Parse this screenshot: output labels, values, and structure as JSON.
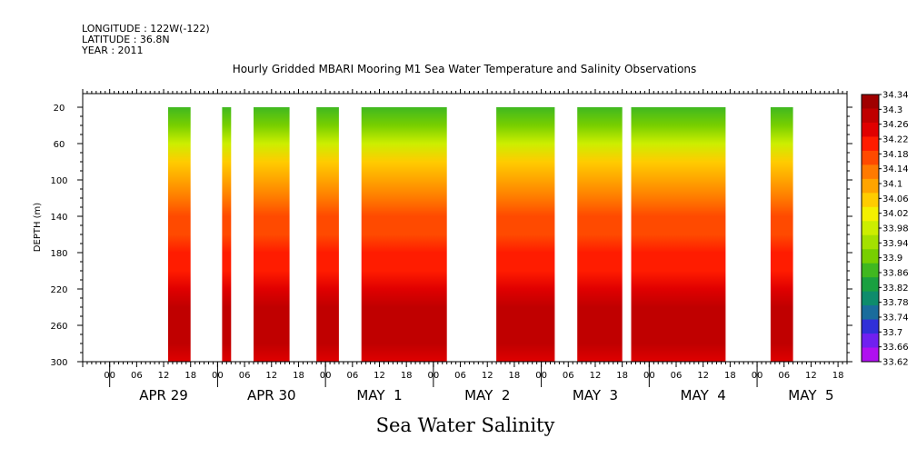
{
  "header": {
    "longitude": "LONGITUDE : 122W(-122)",
    "latitude": "LATITUDE : 36.8N",
    "year": "YEAR : 2011"
  },
  "chart_data": {
    "type": "heatmap",
    "title": "Hourly Gridded MBARI Mooring M1 Sea Water Temperature and Salinity Observations",
    "xlabel": "Sea Water Salinity",
    "ylabel": "DEPTH (m)",
    "ylim": [
      300,
      5
    ],
    "y_ticks": [
      20,
      60,
      100,
      140,
      180,
      220,
      260,
      300
    ],
    "x_range_hours": [
      -6,
      164
    ],
    "hour_tick_labels": [
      "00",
      "06",
      "12",
      "18",
      "00",
      "06",
      "12",
      "18",
      "00",
      "06",
      "12",
      "18",
      "00",
      "06",
      "12",
      "18",
      "00",
      "06",
      "12",
      "18",
      "00",
      "06",
      "12",
      "18",
      "00",
      "06",
      "12",
      "18"
    ],
    "day_labels": [
      {
        "label": "APR 29",
        "hour": 12
      },
      {
        "label": "APR 30",
        "hour": 36
      },
      {
        "label": "MAY  1",
        "hour": 60
      },
      {
        "label": "MAY  2",
        "hour": 84
      },
      {
        "label": "MAY  3",
        "hour": 108
      },
      {
        "label": "MAY  4",
        "hour": 132
      },
      {
        "label": "MAY  5",
        "hour": 156
      }
    ],
    "data_segments_hours": [
      [
        13,
        18
      ],
      [
        25,
        27
      ],
      [
        32,
        40
      ],
      [
        46,
        51
      ],
      [
        56,
        75
      ],
      [
        86,
        99
      ],
      [
        104,
        114
      ],
      [
        116,
        137
      ],
      [
        147,
        152
      ]
    ],
    "depth_profile": [
      {
        "depth": 20,
        "value": 33.83
      },
      {
        "depth": 40,
        "value": 33.9
      },
      {
        "depth": 60,
        "value": 33.98
      },
      {
        "depth": 80,
        "value": 34.05
      },
      {
        "depth": 100,
        "value": 34.09
      },
      {
        "depth": 120,
        "value": 34.12
      },
      {
        "depth": 140,
        "value": 34.15
      },
      {
        "depth": 160,
        "value": 34.18
      },
      {
        "depth": 180,
        "value": 34.19
      },
      {
        "depth": 200,
        "value": 34.21
      },
      {
        "depth": 220,
        "value": 34.24
      },
      {
        "depth": 240,
        "value": 34.28
      },
      {
        "depth": 260,
        "value": 34.3
      },
      {
        "depth": 280,
        "value": 34.28
      },
      {
        "depth": 300,
        "value": 34.26
      }
    ],
    "colorbar": {
      "levels": [
        34.34,
        34.3,
        34.26,
        34.22,
        34.18,
        34.14,
        34.1,
        34.06,
        34.02,
        33.98,
        33.94,
        33.9,
        33.86,
        33.82,
        33.78,
        33.74,
        33.7,
        33.66,
        33.62
      ],
      "colors": [
        "#a00000",
        "#c00000",
        "#e00000",
        "#ff1c00",
        "#ff4a00",
        "#ff7a00",
        "#ffa400",
        "#ffcc00",
        "#f4f000",
        "#ccee00",
        "#a4e000",
        "#78cf00",
        "#40b820",
        "#1aa040",
        "#0e8c6c",
        "#1a6c9c",
        "#3030d8",
        "#7020f0",
        "#b010f0"
      ]
    }
  }
}
